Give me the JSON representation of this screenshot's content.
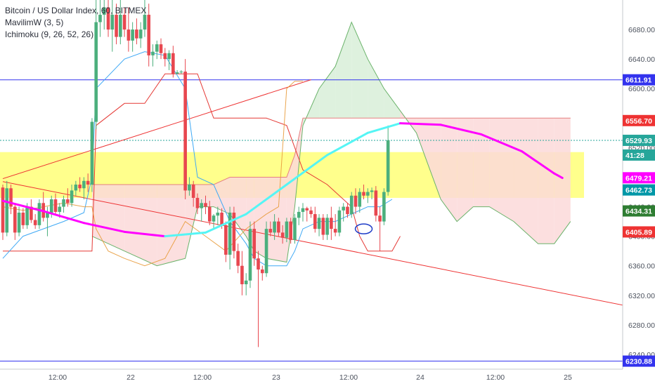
{
  "legend": {
    "symbol": "Bitcoin / US Dollar Index, 60, BITMEX",
    "indicator1": "MavilimW (3, 5)",
    "indicator2": "Ichimoku (9, 26, 52, 26)"
  },
  "colors": {
    "up": "#4caf7d",
    "down": "#e8474f",
    "magenta": "#ff00ff",
    "cyan": "#55f5f5",
    "blue_line": "#3333ee",
    "red_line": "#ee3333",
    "band": "#ffff66",
    "cloud_green": "#d8eed8",
    "cloud_red": "#fbd9d9",
    "last_price": "#26a69a"
  },
  "chart_data": {
    "type": "candlestick",
    "ylim": [
      6220,
      6720
    ],
    "y_ticks": [
      6240,
      6280,
      6320,
      6360,
      6400,
      6440,
      6480,
      6520,
      6560,
      6600,
      6640,
      6680
    ],
    "x_ticks": [
      "12:00",
      "22",
      "12:00",
      "23",
      "12:00",
      "24",
      "12:00",
      "25"
    ],
    "price_tags": [
      {
        "label": "6611.91",
        "value": 6611.91,
        "color": "#3333ee"
      },
      {
        "label": "6556.70",
        "value": 6556.7,
        "color": "#ee3333"
      },
      {
        "label": "6529.93",
        "value": 6529.93,
        "color": "#26a69a"
      },
      {
        "label": "41:28",
        "value": 6510,
        "color": "#26a69a"
      },
      {
        "label": "6479.21",
        "value": 6479.21,
        "color": "#ff00ff"
      },
      {
        "label": "6462.73",
        "value": 6462.73,
        "color": "#0097a7"
      },
      {
        "label": "6434.31",
        "value": 6434.31,
        "color": "#2e7d32"
      },
      {
        "label": "6405.89",
        "value": 6405.89,
        "color": "#ee3333"
      },
      {
        "label": "6230.88",
        "value": 6230.88,
        "color": "#3333ee"
      }
    ],
    "horizontal_lines": [
      {
        "value": 6611.91,
        "color": "#3333ee"
      },
      {
        "value": 6230.88,
        "color": "#3333ee"
      },
      {
        "value": 6529.93,
        "color": "#26a69a",
        "dotted": true
      }
    ],
    "band": [
      6452,
      6514
    ],
    "trendlines": [
      {
        "from": [
          0,
          6478
        ],
        "to": [
          76,
          6612
        ],
        "color": "#ee3333"
      },
      {
        "from": [
          0,
          6474
        ],
        "to": [
          180,
          6277
        ],
        "color": "#ee3333"
      }
    ],
    "candles": [
      [
        6466,
        6470,
        6395,
        6405
      ],
      [
        6405,
        6475,
        6400,
        6465
      ],
      [
        6465,
        6470,
        6430,
        6440
      ],
      [
        6440,
        6445,
        6395,
        6405
      ],
      [
        6405,
        6440,
        6400,
        6432
      ],
      [
        6432,
        6438,
        6410,
        6415
      ],
      [
        6415,
        6445,
        6410,
        6440
      ],
      [
        6440,
        6450,
        6418,
        6422
      ],
      [
        6422,
        6430,
        6410,
        6415
      ],
      [
        6415,
        6450,
        6410,
        6445
      ],
      [
        6445,
        6460,
        6420,
        6425
      ],
      [
        6425,
        6440,
        6400,
        6432
      ],
      [
        6432,
        6455,
        6425,
        6450
      ],
      [
        6450,
        6458,
        6428,
        6433
      ],
      [
        6433,
        6445,
        6425,
        6440
      ],
      [
        6440,
        6455,
        6432,
        6450
      ],
      [
        6450,
        6465,
        6440,
        6445
      ],
      [
        6445,
        6470,
        6440,
        6462
      ],
      [
        6462,
        6475,
        6455,
        6470
      ],
      [
        6470,
        6480,
        6460,
        6465
      ],
      [
        6465,
        6480,
        6450,
        6475
      ],
      [
        6475,
        6485,
        6460,
        6470
      ],
      [
        6470,
        6560,
        6460,
        6555
      ],
      [
        6555,
        6720,
        6545,
        6690
      ],
      [
        6690,
        6720,
        6670,
        6700
      ],
      [
        6700,
        6720,
        6680,
        6710
      ],
      [
        6710,
        6720,
        6670,
        6680
      ],
      [
        6680,
        6720,
        6650,
        6700
      ],
      [
        6700,
        6715,
        6660,
        6670
      ],
      [
        6670,
        6720,
        6660,
        6700
      ],
      [
        6700,
        6710,
        6670,
        6680
      ],
      [
        6680,
        6710,
        6650,
        6665
      ],
      [
        6665,
        6690,
        6650,
        6680
      ],
      [
        6680,
        6695,
        6660,
        6668
      ],
      [
        6668,
        6690,
        6655,
        6680
      ],
      [
        6680,
        6720,
        6670,
        6700
      ],
      [
        6700,
        6715,
        6630,
        6645
      ],
      [
        6645,
        6660,
        6630,
        6650
      ],
      [
        6650,
        6665,
        6640,
        6660
      ],
      [
        6660,
        6668,
        6640,
        6648
      ],
      [
        6648,
        6655,
        6630,
        6640
      ],
      [
        6640,
        6652,
        6625,
        6648
      ],
      [
        6648,
        6658,
        6615,
        6620
      ],
      [
        6620,
        6625,
        6620,
        6622
      ],
      [
        6622,
        6625,
        6620,
        6623
      ],
      [
        6623,
        6640,
        6450,
        6462
      ],
      [
        6462,
        6480,
        6455,
        6470
      ],
      [
        6470,
        6475,
        6440,
        6452
      ],
      [
        6452,
        6458,
        6430,
        6438
      ],
      [
        6438,
        6450,
        6420,
        6445
      ],
      [
        6445,
        6455,
        6430,
        6440
      ],
      [
        6440,
        6448,
        6415,
        6420
      ],
      [
        6420,
        6430,
        6410,
        6428
      ],
      [
        6428,
        6440,
        6415,
        6432
      ],
      [
        6432,
        6438,
        6410,
        6415
      ],
      [
        6415,
        6420,
        6365,
        6375
      ],
      [
        6375,
        6440,
        6355,
        6432
      ],
      [
        6432,
        6440,
        6370,
        6380
      ],
      [
        6380,
        6390,
        6350,
        6360
      ],
      [
        6360,
        6380,
        6320,
        6335
      ],
      [
        6335,
        6350,
        6320,
        6340
      ],
      [
        6340,
        6420,
        6330,
        6410
      ],
      [
        6410,
        6420,
        6360,
        6370
      ],
      [
        6370,
        6380,
        6250,
        6355
      ],
      [
        6355,
        6360,
        6340,
        6350
      ],
      [
        6350,
        6420,
        6345,
        6410
      ],
      [
        6410,
        6420,
        6400,
        6405
      ],
      [
        6405,
        6430,
        6395,
        6420
      ],
      [
        6420,
        6425,
        6400,
        6405
      ],
      [
        6405,
        6415,
        6390,
        6398
      ],
      [
        6398,
        6425,
        6392,
        6420
      ],
      [
        6420,
        6425,
        6390,
        6395
      ],
      [
        6395,
        6430,
        6390,
        6425
      ],
      [
        6425,
        6440,
        6415,
        6433
      ],
      [
        6433,
        6445,
        6420,
        6438
      ],
      [
        6438,
        6440,
        6420,
        6435
      ],
      [
        6435,
        6440,
        6425,
        6430
      ],
      [
        6430,
        6440,
        6405,
        6410
      ],
      [
        6410,
        6430,
        6400,
        6425
      ],
      [
        6425,
        6430,
        6395,
        6402
      ],
      [
        6402,
        6430,
        6395,
        6425
      ],
      [
        6425,
        6440,
        6395,
        6410
      ],
      [
        6410,
        6430,
        6400,
        6405
      ],
      [
        6405,
        6440,
        6400,
        6435
      ],
      [
        6435,
        6445,
        6420,
        6440
      ],
      [
        6440,
        6445,
        6425,
        6430
      ],
      [
        6430,
        6460,
        6425,
        6455
      ],
      [
        6455,
        6465,
        6430,
        6440
      ],
      [
        6440,
        6465,
        6432,
        6460
      ],
      [
        6460,
        6470,
        6450,
        6455
      ],
      [
        6455,
        6465,
        6445,
        6460
      ],
      [
        6460,
        6466,
        6450,
        6462
      ],
      [
        6462,
        6468,
        6420,
        6428
      ],
      [
        6428,
        6440,
        6380,
        6420
      ],
      [
        6420,
        6465,
        6415,
        6460
      ],
      [
        6460,
        6550,
        6455,
        6530
      ]
    ],
    "mavilim": [
      [
        0,
        6448
      ],
      [
        10,
        6434
      ],
      [
        20,
        6418
      ],
      [
        30,
        6406
      ],
      [
        40,
        6400
      ],
      [
        50,
        6405
      ],
      [
        60,
        6430
      ],
      [
        70,
        6470
      ],
      [
        80,
        6510
      ],
      [
        90,
        6540
      ],
      [
        98,
        6553
      ],
      [
        108,
        6551
      ],
      [
        118,
        6538
      ],
      [
        128,
        6515
      ],
      [
        136,
        6485
      ],
      [
        138,
        6479
      ]
    ],
    "mavilim_cyan_range": [
      40,
      97
    ],
    "tenkan": [
      [
        0,
        6370
      ],
      [
        5,
        6400
      ],
      [
        10,
        6410
      ],
      [
        15,
        6420
      ],
      [
        20,
        6432
      ],
      [
        22,
        6480
      ],
      [
        23,
        6600
      ],
      [
        30,
        6640
      ],
      [
        35,
        6650
      ],
      [
        40,
        6645
      ],
      [
        45,
        6600
      ],
      [
        48,
        6480
      ],
      [
        52,
        6470
      ],
      [
        56,
        6420
      ],
      [
        60,
        6390
      ],
      [
        62,
        6370
      ],
      [
        65,
        6360
      ],
      [
        70,
        6360
      ],
      [
        72,
        6380
      ],
      [
        74,
        6410
      ],
      [
        78,
        6420
      ],
      [
        82,
        6420
      ],
      [
        86,
        6430
      ],
      [
        90,
        6440
      ],
      [
        93,
        6440
      ],
      [
        96,
        6450
      ]
    ],
    "kijun": [
      [
        0,
        6380
      ],
      [
        5,
        6380
      ],
      [
        10,
        6380
      ],
      [
        15,
        6380
      ],
      [
        20,
        6380
      ],
      [
        22,
        6380
      ],
      [
        23,
        6550
      ],
      [
        30,
        6580
      ],
      [
        35,
        6580
      ],
      [
        40,
        6620
      ],
      [
        45,
        6620
      ],
      [
        48,
        6620
      ],
      [
        52,
        6560
      ],
      [
        56,
        6560
      ],
      [
        60,
        6560
      ],
      [
        62,
        6560
      ],
      [
        65,
        6560
      ],
      [
        70,
        6550
      ],
      [
        74,
        6490
      ],
      [
        80,
        6470
      ],
      [
        86,
        6440
      ],
      [
        88,
        6400
      ],
      [
        90,
        6380
      ],
      [
        96,
        6380
      ],
      [
        98,
        6400
      ]
    ],
    "cloud_span_a": [
      [
        22,
        6400
      ],
      [
        30,
        6380
      ],
      [
        38,
        6360
      ],
      [
        45,
        6370
      ],
      [
        48,
        6440
      ],
      [
        52,
        6440
      ],
      [
        56,
        6430
      ],
      [
        60,
        6400
      ],
      [
        62,
        6380
      ],
      [
        65,
        6370
      ],
      [
        70,
        6365
      ],
      [
        72,
        6440
      ],
      [
        74,
        6550
      ],
      [
        78,
        6600
      ],
      [
        82,
        6630
      ],
      [
        86,
        6690
      ],
      [
        90,
        6640
      ],
      [
        94,
        6600
      ],
      [
        98,
        6570
      ],
      [
        102,
        6540
      ],
      [
        108,
        6450
      ],
      [
        112,
        6420
      ],
      [
        116,
        6440
      ],
      [
        120,
        6440
      ],
      [
        126,
        6420
      ],
      [
        132,
        6390
      ],
      [
        136,
        6390
      ],
      [
        140,
        6420
      ]
    ],
    "cloud_span_b": [
      [
        22,
        6470
      ],
      [
        30,
        6470
      ],
      [
        38,
        6470
      ],
      [
        45,
        6470
      ],
      [
        48,
        6470
      ],
      [
        52,
        6470
      ],
      [
        56,
        6480
      ],
      [
        60,
        6480
      ],
      [
        62,
        6480
      ],
      [
        65,
        6480
      ],
      [
        70,
        6480
      ],
      [
        72,
        6510
      ],
      [
        74,
        6560
      ],
      [
        78,
        6560
      ],
      [
        82,
        6560
      ],
      [
        86,
        6560
      ],
      [
        90,
        6560
      ],
      [
        94,
        6560
      ],
      [
        98,
        6560
      ],
      [
        102,
        6560
      ],
      [
        108,
        6560
      ],
      [
        112,
        6560
      ],
      [
        116,
        6560
      ],
      [
        120,
        6560
      ],
      [
        126,
        6560
      ],
      [
        132,
        6560
      ],
      [
        136,
        6560
      ],
      [
        140,
        6560
      ]
    ],
    "chikou": [
      [
        0,
        6440
      ],
      [
        5,
        6435
      ],
      [
        10,
        6440
      ],
      [
        15,
        6445
      ],
      [
        20,
        6440
      ],
      [
        22,
        6440
      ],
      [
        23,
        6410
      ],
      [
        26,
        6380
      ],
      [
        30,
        6370
      ],
      [
        35,
        6360
      ],
      [
        40,
        6370
      ],
      [
        45,
        6420
      ],
      [
        50,
        6400
      ],
      [
        55,
        6380
      ],
      [
        60,
        6410
      ],
      [
        65,
        6430
      ],
      [
        68,
        6440
      ],
      [
        70,
        6600
      ],
      [
        72,
        6610
      ],
      [
        74,
        6610
      ]
    ]
  }
}
